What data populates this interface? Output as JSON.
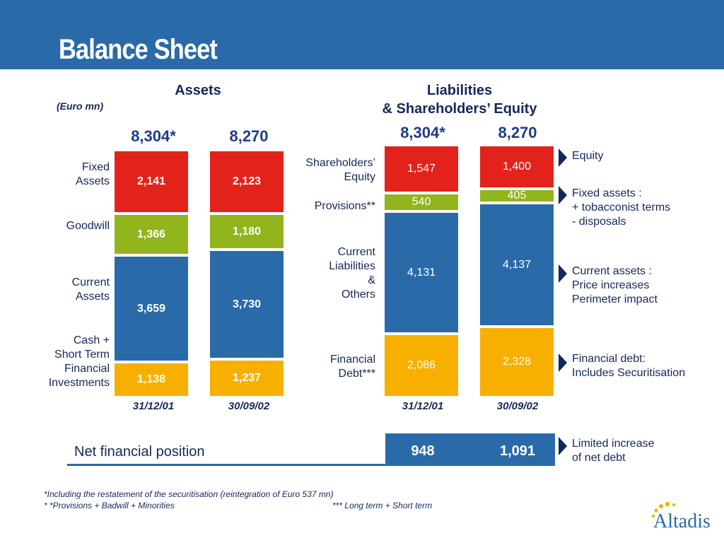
{
  "title": "Balance Sheet",
  "assets": {
    "heading": "Assets",
    "unit": "(Euro mn)",
    "labels": {
      "fixed": [
        "Fixed",
        "Assets"
      ],
      "goodwill": [
        "Goodwill"
      ],
      "current": [
        "Current",
        "Assets"
      ],
      "cash": [
        "Cash  +",
        "Short Term",
        "Financial",
        "Investments"
      ]
    }
  },
  "liabilities": {
    "heading_line1": "Liabilities",
    "heading_line2": "& Shareholders’ Equity",
    "labels": {
      "equity": [
        "Shareholders’",
        "Equity"
      ],
      "provisions": [
        "Provisions**"
      ],
      "current": [
        "Current",
        "Liabilities",
        "&",
        "Others"
      ],
      "debt": [
        "Financial",
        "Debt***"
      ]
    }
  },
  "chart_data": [
    {
      "type": "bar",
      "stacked": true,
      "title": "Assets",
      "categories": [
        "31/12/01",
        "30/09/02"
      ],
      "totals": [
        "8,304*",
        "8,270"
      ],
      "series": [
        {
          "name": "Fixed Assets",
          "values": [
            2141,
            2123
          ],
          "labels": [
            "2,141",
            "2,123"
          ],
          "color": "#e3231b"
        },
        {
          "name": "Goodwill",
          "values": [
            1366,
            1180
          ],
          "labels": [
            "1,366",
            "1,180"
          ],
          "color": "#92b41c"
        },
        {
          "name": "Current Assets",
          "values": [
            3659,
            3730
          ],
          "labels": [
            "3,659",
            "3,730"
          ],
          "color": "#2a6aa8"
        },
        {
          "name": "Cash + Short Term Financial Investments",
          "values": [
            1138,
            1237
          ],
          "labels": [
            "1,138",
            "1,237"
          ],
          "color": "#f8b000"
        }
      ]
    },
    {
      "type": "bar",
      "stacked": true,
      "title": "Liabilities & Shareholders’ Equity",
      "categories": [
        "31/12/01",
        "30/09/02"
      ],
      "totals": [
        "8,304*",
        "8,270"
      ],
      "series": [
        {
          "name": "Shareholders’ Equity",
          "values": [
            1547,
            1400
          ],
          "labels": [
            "1,547",
            "1,400"
          ],
          "color": "#e3231b"
        },
        {
          "name": "Provisions**",
          "values": [
            540,
            405
          ],
          "labels": [
            "540",
            "405"
          ],
          "color": "#92b41c"
        },
        {
          "name": "Current Liabilities & Others",
          "values": [
            4131,
            4137
          ],
          "labels": [
            "4,131",
            "4,137"
          ],
          "color": "#2a6aa8"
        },
        {
          "name": "Financial Debt***",
          "values": [
            2086,
            2328
          ],
          "labels": [
            "2,086",
            "2,328"
          ],
          "color": "#f8b000"
        }
      ]
    }
  ],
  "notes": [
    {
      "lines": [
        "Equity"
      ]
    },
    {
      "lines": [
        "Fixed assets :",
        "+ tobacconist terms",
        "- disposals"
      ]
    },
    {
      "lines": [
        "Current assets :",
        "Price increases",
        "Perimeter impact"
      ]
    },
    {
      "lines": [
        "Financial debt:",
        "Includes Securitisation"
      ]
    },
    {
      "lines": [
        "Limited increase",
        "of net debt"
      ]
    }
  ],
  "net_financial_position": {
    "label": "Net financial position",
    "values": [
      "948",
      "1,091"
    ]
  },
  "footnotes": {
    "line1": "*Including the restatement of the securitisation (reintegration of Euro 537 mn)",
    "line2a": "* *Provisions + Badwill + Minorities",
    "line2b": "*** Long term + Short term"
  },
  "logo": {
    "text": "Altadis"
  },
  "colors": {
    "header": "#2a6aa8",
    "text": "#14285a",
    "red": "#e3231b",
    "green": "#92b41c",
    "blue": "#2a6aa8",
    "orange": "#f8b000"
  }
}
